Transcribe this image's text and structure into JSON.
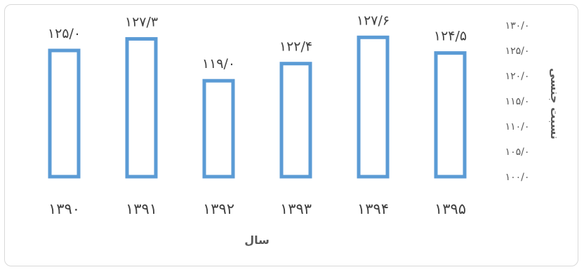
{
  "chart_data": {
    "type": "bar",
    "categories": [
      "۱۳۹۰",
      "۱۳۹۱",
      "۱۳۹۲",
      "۱۳۹۳",
      "۱۳۹۴",
      "۱۳۹۵"
    ],
    "values": [
      125.0,
      127.3,
      119.0,
      122.4,
      127.6,
      124.5
    ],
    "data_labels": [
      "۱۲۵/۰",
      "۱۲۷/۳",
      "۱۱۹/۰",
      "۱۲۲/۴",
      "۱۲۷/۶",
      "۱۲۴/۵"
    ],
    "y_ticks": [
      100,
      105,
      110,
      115,
      120,
      125,
      130
    ],
    "y_tick_labels": [
      "۱۰۰/۰",
      "۱۰۵/۰",
      "۱۱۰/۰",
      "۱۱۵/۰",
      "۱۲۰/۰",
      "۱۲۵/۰",
      "۱۳۰/۰"
    ],
    "ylim": [
      100,
      130
    ],
    "xlabel": "سال",
    "ylabel": "نسبت جنسی",
    "y_axis_position": "right",
    "grid": false,
    "bar_style": "outline",
    "bar_color": "#5b9bd5"
  }
}
